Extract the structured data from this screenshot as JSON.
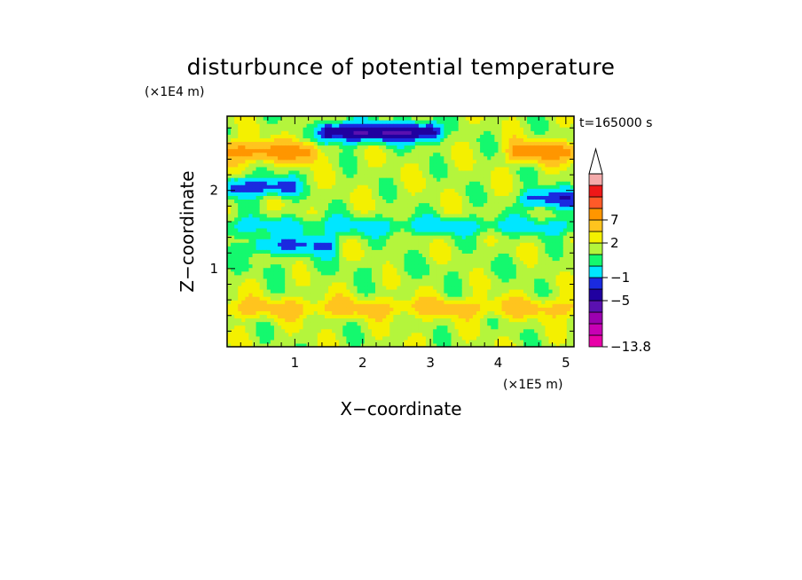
{
  "chart_data": {
    "type": "heatmap",
    "title": "disturbunce of potential temperature",
    "xlabel": "X−coordinate",
    "ylabel": "Z−coordinate",
    "x_unit": "(×1E5 m)",
    "y_unit": "(×1E4 m)",
    "time_label": "t=165000 s",
    "xlim": [
      0,
      5.12
    ],
    "ylim": [
      0,
      2.95
    ],
    "xticks": [
      1,
      2,
      3,
      4,
      5
    ],
    "yticks": [
      1,
      2
    ],
    "colorbar": {
      "levels": [
        -13.8,
        -11,
        -9,
        -7,
        -5,
        -3,
        -1,
        0,
        1,
        2,
        4,
        7,
        9,
        12
      ],
      "colors": [
        "#e800a8",
        "#c800b4",
        "#9c00b0",
        "#5a10b0",
        "#2000a0",
        "#1a2ae0",
        "#00e6ff",
        "#14f96e",
        "#b4f53c",
        "#f4f000",
        "#ffc41e",
        "#ff9600",
        "#ff5a28",
        "#ee1818",
        "#f4aaaa"
      ],
      "tick_labels": [
        "7",
        "2",
        "−1",
        "−5",
        "−13.8"
      ],
      "tick_values": [
        7,
        2,
        -1,
        -5,
        -13.8
      ],
      "extend": "max"
    },
    "pattern": {
      "background": 0.6,
      "bands": [
        {
          "z": 2.5,
          "x_start": 0,
          "x_end": 1.2,
          "value": 5
        },
        {
          "z": 2.75,
          "x_start": 1.5,
          "x_end": 3.0,
          "value": -7
        },
        {
          "z": 2.5,
          "x_start": 4.3,
          "x_end": 5.12,
          "value": 5
        },
        {
          "z": 2.05,
          "x_start": 0.1,
          "x_end": 0.9,
          "value": -4
        },
        {
          "z": 1.55,
          "x_start": 0,
          "x_end": 5.12,
          "value": -1.5
        },
        {
          "z": 1.0,
          "x_start": 0,
          "x_end": 5.12,
          "value": 0.2
        },
        {
          "z": 0.5,
          "x_start": 0,
          "x_end": 5.12,
          "value": 2.5
        },
        {
          "z": 1.3,
          "x_start": 0.5,
          "x_end": 1.5,
          "value": -3
        },
        {
          "z": 1.9,
          "x_start": 4.5,
          "x_end": 5.12,
          "value": -4
        }
      ]
    }
  }
}
